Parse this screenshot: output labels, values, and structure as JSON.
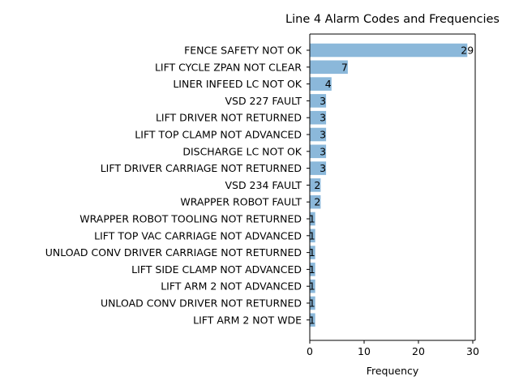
{
  "chart_data": {
    "type": "bar",
    "orientation": "horizontal",
    "title": "Line 4 Alarm Codes and Frequencies",
    "xlabel": "Frequency",
    "ylabel": "",
    "xlim": [
      0,
      30.45
    ],
    "xticks": [
      0,
      10,
      20,
      30
    ],
    "grid": false,
    "bar_color": "#8bb8da",
    "categories": [
      "FENCE SAFETY NOT OK",
      "LIFT CYCLE ZPAN NOT CLEAR",
      "LINER INFEED LC NOT OK",
      "VSD 227 FAULT",
      "LIFT DRIVER NOT RETURNED",
      "LIFT TOP CLAMP NOT ADVANCED",
      "DISCHARGE LC NOT OK",
      "LIFT DRIVER CARRIAGE NOT RETURNED",
      "VSD 234 FAULT",
      "WRAPPER ROBOT FAULT",
      "WRAPPER ROBOT TOOLING NOT RETURNED",
      "LIFT TOP VAC CARRIAGE NOT ADVANCED",
      "UNLOAD CONV DRIVER CARRIAGE NOT RETURNED",
      "LIFT SIDE CLAMP NOT ADVANCED",
      "LIFT ARM 2 NOT ADVANCED",
      "UNLOAD CONV DRIVER NOT RETURNED",
      "LIFT ARM 2 NOT WDE"
    ],
    "values": [
      29,
      7,
      4,
      3,
      3,
      3,
      3,
      3,
      2,
      2,
      1,
      1,
      1,
      1,
      1,
      1,
      1
    ]
  }
}
